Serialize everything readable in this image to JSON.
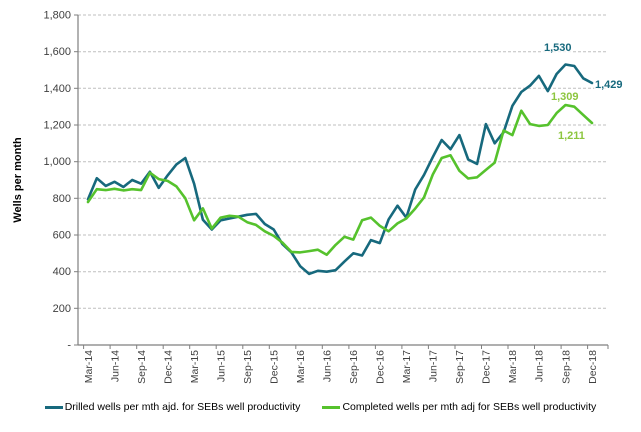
{
  "chart_data": {
    "type": "line",
    "y_axis_title": "Wells per month",
    "y_axis_max": 1800,
    "y_tick_step": 200,
    "y_tick_labels": [
      "1,800",
      "1,600",
      "1,400",
      "1,200",
      "1,000",
      "800",
      "600",
      "400",
      "200",
      "-"
    ],
    "x_tick_labels": [
      "Mar-14",
      "Jun-14",
      "Sep-14",
      "Dec-14",
      "Mar-15",
      "Jun-15",
      "Sep-15",
      "Dec-15",
      "Mar-16",
      "Jun-16",
      "Sep-16",
      "Dec-16",
      "Mar-17",
      "Jun-17",
      "Sep-17",
      "Dec-17",
      "Mar-18",
      "Jun-18",
      "Sep-18",
      "Dec-18"
    ],
    "months": [
      "Mar-14",
      "Apr-14",
      "May-14",
      "Jun-14",
      "Jul-14",
      "Aug-14",
      "Sep-14",
      "Oct-14",
      "Nov-14",
      "Dec-14",
      "Jan-15",
      "Feb-15",
      "Mar-15",
      "Apr-15",
      "May-15",
      "Jun-15",
      "Jul-15",
      "Aug-15",
      "Sep-15",
      "Oct-15",
      "Nov-15",
      "Dec-15",
      "Jan-16",
      "Feb-16",
      "Mar-16",
      "Apr-16",
      "May-16",
      "Jun-16",
      "Jul-16",
      "Aug-16",
      "Sep-16",
      "Oct-16",
      "Nov-16",
      "Dec-16",
      "Jan-17",
      "Feb-17",
      "Mar-17",
      "Apr-17",
      "May-17",
      "Jun-17",
      "Jul-17",
      "Aug-17",
      "Sep-17",
      "Oct-17",
      "Nov-17",
      "Dec-17",
      "Jan-18",
      "Feb-18",
      "Mar-18",
      "Apr-18",
      "May-18",
      "Jun-18",
      "Jul-18",
      "Aug-18",
      "Sep-18",
      "Oct-18",
      "Nov-18",
      "Dec-18"
    ],
    "grid": "horizontal-dashed",
    "gridline_color": "#bfbfbf",
    "axis_color": "#7f7f7f",
    "tick_label_color": "#404040",
    "legend_position": "bottom",
    "series": [
      {
        "name": "Drilled wells per mth ajd. for SEBs well productivity",
        "data_name": "drilled-series-line",
        "color": "#17697d",
        "values": [
          795,
          910,
          868,
          890,
          862,
          900,
          880,
          945,
          857,
          925,
          985,
          1020,
          880,
          683,
          630,
          680,
          690,
          700,
          710,
          715,
          660,
          630,
          550,
          505,
          430,
          388,
          405,
          400,
          408,
          455,
          500,
          488,
          572,
          556,
          685,
          760,
          695,
          848,
          928,
          1025,
          1118,
          1068,
          1145,
          1012,
          988,
          1205,
          1100,
          1160,
          1305,
          1380,
          1415,
          1468,
          1385,
          1478,
          1530,
          1522,
          1455,
          1429
        ]
      },
      {
        "name": "Completed wells per mth adj for SEBs well productivity",
        "data_name": "completed-series-line",
        "color": "#56c22d",
        "values": [
          780,
          850,
          845,
          852,
          843,
          850,
          845,
          940,
          905,
          895,
          865,
          800,
          680,
          745,
          635,
          695,
          705,
          700,
          670,
          655,
          620,
          595,
          558,
          508,
          505,
          512,
          520,
          492,
          546,
          590,
          575,
          680,
          695,
          650,
          620,
          663,
          690,
          744,
          805,
          930,
          1020,
          1035,
          950,
          908,
          915,
          955,
          995,
          1170,
          1145,
          1278,
          1205,
          1195,
          1200,
          1265,
          1309,
          1300,
          1255,
          1211
        ]
      }
    ],
    "annotations": [
      {
        "text": "1,530",
        "series": "drilled",
        "month": "Sep-18",
        "value": 1530,
        "color": "#17697d"
      },
      {
        "text": "1,429",
        "series": "drilled",
        "month": "Dec-18",
        "value": 1429,
        "color": "#17697d"
      },
      {
        "text": "1,309",
        "series": "completed",
        "month": "Sep-18",
        "value": 1309,
        "color": "#8dc63f"
      },
      {
        "text": "1,211",
        "series": "completed",
        "month": "Dec-18",
        "value": 1211,
        "color": "#8dc63f"
      }
    ]
  }
}
